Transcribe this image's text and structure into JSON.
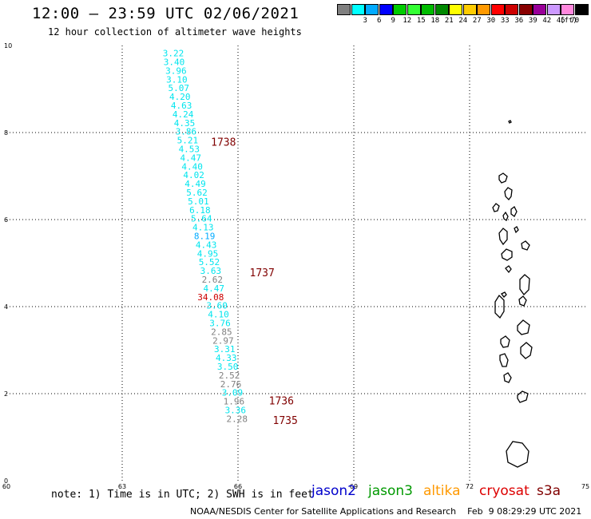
{
  "header": {
    "title": "12:00 – 23:59 UTC 02/06/2021",
    "subtitle": "12 hour collection of altimeter wave heights"
  },
  "legend": {
    "unit": "(ft)",
    "bins": [
      {
        "label": "",
        "color": "#808080"
      },
      {
        "label": "3",
        "color": "#00ffff"
      },
      {
        "label": "6",
        "color": "#00aaff"
      },
      {
        "label": "9",
        "color": "#0000ff"
      },
      {
        "label": "12",
        "color": "#00cc00"
      },
      {
        "label": "15",
        "color": "#33ff33"
      },
      {
        "label": "18",
        "color": "#00bb00"
      },
      {
        "label": "21",
        "color": "#008800"
      },
      {
        "label": "24",
        "color": "#ffff00"
      },
      {
        "label": "27",
        "color": "#ffcc00"
      },
      {
        "label": "30",
        "color": "#ff9900"
      },
      {
        "label": "33",
        "color": "#ff0000"
      },
      {
        "label": "36",
        "color": "#cc0000"
      },
      {
        "label": "39",
        "color": "#880000"
      },
      {
        "label": "42",
        "color": "#990099"
      },
      {
        "label": "45",
        "color": "#cc99ff"
      },
      {
        "label": "70",
        "color": "#ff88dd"
      },
      {
        "label": "",
        "color": "#000000"
      }
    ]
  },
  "axes": {
    "x_ticks": [
      "60",
      "63",
      "66",
      "69",
      "72",
      "75"
    ],
    "y_ticks": [
      "0",
      "2",
      "4",
      "6",
      "8",
      "10"
    ]
  },
  "observations": [
    {
      "lon": 64.05,
      "lat": 9.75,
      "value": "3.22",
      "color": "#00e5ee"
    },
    {
      "lon": 64.07,
      "lat": 9.55,
      "value": "3.40",
      "color": "#00e5ee"
    },
    {
      "lon": 64.12,
      "lat": 9.35,
      "value": "3.96",
      "color": "#00e5ee"
    },
    {
      "lon": 64.14,
      "lat": 9.15,
      "value": "3.10",
      "color": "#00e5ee"
    },
    {
      "lon": 64.19,
      "lat": 8.95,
      "value": "5.07",
      "color": "#00e5ee"
    },
    {
      "lon": 64.22,
      "lat": 8.75,
      "value": "4.20",
      "color": "#00e5ee"
    },
    {
      "lon": 64.26,
      "lat": 8.55,
      "value": "4.63",
      "color": "#00e5ee"
    },
    {
      "lon": 64.3,
      "lat": 8.35,
      "value": "4.24",
      "color": "#00e5ee"
    },
    {
      "lon": 64.34,
      "lat": 8.15,
      "value": "4.35",
      "color": "#00e5ee"
    },
    {
      "lon": 64.38,
      "lat": 7.95,
      "value": "3.86",
      "color": "#00e5ee"
    },
    {
      "lon": 64.42,
      "lat": 7.75,
      "value": "5.21",
      "color": "#00e5ee"
    },
    {
      "lon": 64.46,
      "lat": 7.55,
      "value": "4.53",
      "color": "#00e5ee"
    },
    {
      "lon": 64.5,
      "lat": 7.35,
      "value": "4.47",
      "color": "#00e5ee"
    },
    {
      "lon": 64.54,
      "lat": 7.15,
      "value": "4.40",
      "color": "#00e5ee"
    },
    {
      "lon": 64.58,
      "lat": 6.95,
      "value": "4.02",
      "color": "#00e5ee"
    },
    {
      "lon": 64.62,
      "lat": 6.75,
      "value": "4.49",
      "color": "#00e5ee"
    },
    {
      "lon": 64.66,
      "lat": 6.55,
      "value": "5.62",
      "color": "#00e5ee"
    },
    {
      "lon": 64.7,
      "lat": 6.35,
      "value": "5.01",
      "color": "#00e5ee"
    },
    {
      "lon": 64.74,
      "lat": 6.15,
      "value": "6.18",
      "color": "#00e5ee"
    },
    {
      "lon": 64.78,
      "lat": 5.95,
      "value": "5.64",
      "color": "#00e5ee"
    },
    {
      "lon": 64.82,
      "lat": 5.75,
      "value": "4.13",
      "color": "#00e5ee"
    },
    {
      "lon": 64.86,
      "lat": 5.55,
      "value": "8.19",
      "color": "#00aaff"
    },
    {
      "lon": 64.9,
      "lat": 5.35,
      "value": "4.43",
      "color": "#00e5ee"
    },
    {
      "lon": 64.94,
      "lat": 5.15,
      "value": "4.95",
      "color": "#00e5ee"
    },
    {
      "lon": 64.98,
      "lat": 4.95,
      "value": "5.52",
      "color": "#00e5ee"
    },
    {
      "lon": 65.02,
      "lat": 4.75,
      "value": "3.63",
      "color": "#00e5ee"
    },
    {
      "lon": 65.06,
      "lat": 4.55,
      "value": "2.62",
      "color": "#808080"
    },
    {
      "lon": 65.1,
      "lat": 4.35,
      "value": "4.47",
      "color": "#00e5ee"
    },
    {
      "lon": 64.95,
      "lat": 4.15,
      "value": "34.08",
      "color": "#cc0000"
    },
    {
      "lon": 65.18,
      "lat": 3.95,
      "value": "3.60",
      "color": "#00e5ee"
    },
    {
      "lon": 65.22,
      "lat": 3.75,
      "value": "4.10",
      "color": "#00e5ee"
    },
    {
      "lon": 65.26,
      "lat": 3.55,
      "value": "3.76",
      "color": "#00e5ee"
    },
    {
      "lon": 65.3,
      "lat": 3.35,
      "value": "2.85",
      "color": "#808080"
    },
    {
      "lon": 65.34,
      "lat": 3.15,
      "value": "2.97",
      "color": "#808080"
    },
    {
      "lon": 65.38,
      "lat": 2.95,
      "value": "3.31",
      "color": "#00e5ee"
    },
    {
      "lon": 65.42,
      "lat": 2.75,
      "value": "4.33",
      "color": "#00e5ee"
    },
    {
      "lon": 65.46,
      "lat": 2.55,
      "value": "3.50",
      "color": "#00e5ee"
    },
    {
      "lon": 65.5,
      "lat": 2.35,
      "value": "2.52",
      "color": "#808080"
    },
    {
      "lon": 65.54,
      "lat": 2.15,
      "value": "2.76",
      "color": "#808080"
    },
    {
      "lon": 65.58,
      "lat": 1.95,
      "value": "3.09",
      "color": "#00e5ee"
    },
    {
      "lon": 65.62,
      "lat": 1.75,
      "value": "1.96",
      "color": "#808080"
    },
    {
      "lon": 65.66,
      "lat": 1.55,
      "value": "3.36",
      "color": "#00e5ee"
    },
    {
      "lon": 65.7,
      "lat": 1.35,
      "value": "2.28",
      "color": "#808080"
    }
  ],
  "time_labels": [
    {
      "lon": 65.3,
      "lat": 7.7,
      "text": "1738",
      "color": "#800000"
    },
    {
      "lon": 66.3,
      "lat": 4.7,
      "text": "1737",
      "color": "#800000"
    },
    {
      "lon": 66.8,
      "lat": 1.75,
      "text": "1736",
      "color": "#800000"
    },
    {
      "lon": 66.9,
      "lat": 1.3,
      "text": "1735",
      "color": "#800000"
    }
  ],
  "satellites": [
    {
      "name": "jason2",
      "color": "#0000cc"
    },
    {
      "name": "jason3",
      "color": "#009900"
    },
    {
      "name": "altika",
      "color": "#ff9900"
    },
    {
      "name": "cryosat",
      "color": "#dd0000"
    },
    {
      "name": "s3a",
      "color": "#800000"
    }
  ],
  "note": "note: 1) Time is in UTC; 2) SWH is in feet",
  "footer": "NOAA/NESDIS Center for Satellite Applications and Research    Feb  9 08:29:29 UTC 2021"
}
